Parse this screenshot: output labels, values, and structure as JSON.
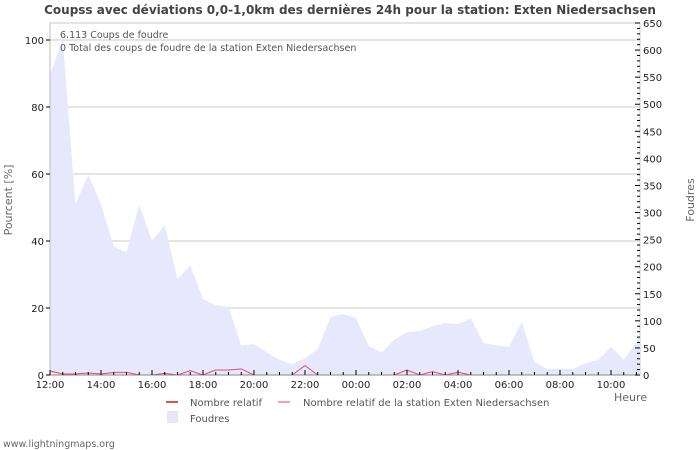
{
  "title": "Coupss avec déviations 0,0-1,0km des dernières 24h pour la station: Exten Niedersachsen",
  "annotations": {
    "line1": "6.113  Coups de foudre",
    "line2": "0 Total des coups de foudre de la station Exten Niedersachsen"
  },
  "axes": {
    "left_label": "Pourcent   [%]",
    "right_label": "Foudres",
    "x_label": "Heure",
    "left_ticks": [
      "0",
      "20",
      "40",
      "60",
      "80",
      "100"
    ],
    "right_ticks": [
      "0",
      "50",
      "100",
      "150",
      "200",
      "250",
      "300",
      "350",
      "400",
      "450",
      "500",
      "550",
      "600",
      "650"
    ],
    "x_ticks": [
      "12:00",
      "14:00",
      "16:00",
      "18:00",
      "20:00",
      "22:00",
      "00:00",
      "02:00",
      "04:00",
      "06:00",
      "08:00",
      "10:00"
    ]
  },
  "legend": {
    "items": [
      {
        "label": "Nombre relatif",
        "color": "#d9534f",
        "type": "line"
      },
      {
        "label": "Nombre relatif de la station Exten Niedersachsen",
        "color": "#f4a3a3",
        "type": "line"
      },
      {
        "label": "Foudres",
        "color": "#e6e6fa",
        "type": "area"
      }
    ]
  },
  "footer": "www.lightningmaps.org",
  "colors": {
    "area": "#e8e8fc",
    "relative_line": "#d94f6a",
    "grid": "#c8c8c8",
    "title": "#444444"
  },
  "chart_data": {
    "type": "area",
    "title": "Coupss avec déviations 0,0-1,0km des dernières 24h pour la station: Exten Niedersachsen",
    "xlabel": "Heure",
    "ylabel": "Pourcent [%]",
    "y2label": "Foudres",
    "ylim": [
      0,
      100
    ],
    "y2lim": [
      0,
      650
    ],
    "grid": true,
    "legend_position": "bottom",
    "x": [
      "12:00",
      "12:30",
      "13:00",
      "13:30",
      "14:00",
      "14:30",
      "15:00",
      "15:30",
      "16:00",
      "16:30",
      "17:00",
      "17:30",
      "18:00",
      "18:30",
      "19:00",
      "19:30",
      "20:00",
      "20:30",
      "21:00",
      "21:30",
      "22:00",
      "22:30",
      "23:00",
      "23:30",
      "00:00",
      "00:30",
      "01:00",
      "01:30",
      "02:00",
      "02:30",
      "03:00",
      "03:30",
      "04:00",
      "04:30",
      "05:00",
      "05:30",
      "06:00",
      "06:30",
      "07:00",
      "07:30",
      "08:00",
      "08:30",
      "09:00",
      "09:30",
      "10:00",
      "10:30",
      "11:00",
      "11:30"
    ],
    "series": [
      {
        "name": "Foudres",
        "axis": "right",
        "type": "area",
        "values": [
          555,
          620,
          315,
          370,
          315,
          237,
          227,
          315,
          248,
          277,
          177,
          203,
          140,
          129,
          126,
          54,
          57,
          42,
          28,
          20,
          31,
          48,
          107,
          113,
          105,
          54,
          41,
          65,
          79,
          81,
          90,
          96,
          94,
          105,
          59,
          55,
          52,
          98,
          24,
          11,
          11,
          11,
          22,
          28,
          52,
          28,
          61,
          83
        ]
      },
      {
        "name": "Nombre relatif",
        "axis": "left",
        "type": "line",
        "values": [
          1.2,
          0.3,
          0.3,
          0.6,
          0.3,
          0.8,
          0.8,
          0,
          0,
          0.5,
          0,
          1.3,
          0,
          1.5,
          1.5,
          1.8,
          0,
          0,
          0,
          0,
          2.8,
          0,
          0,
          0,
          0,
          0,
          0,
          0,
          1.5,
          0,
          1.0,
          0,
          0.8,
          0,
          0,
          0,
          0,
          0,
          0,
          0,
          0,
          0,
          0,
          0,
          0,
          0,
          0,
          0
        ]
      },
      {
        "name": "Nombre relatif de la station Exten Niedersachsen",
        "axis": "left",
        "type": "line",
        "values": [
          0,
          0,
          0,
          0,
          0,
          0,
          0,
          0,
          0,
          0,
          0,
          0,
          0,
          0,
          0,
          0,
          0,
          0,
          0,
          0,
          0,
          0,
          0,
          0,
          0,
          0,
          0,
          0,
          0,
          0,
          0,
          0,
          0,
          0,
          0,
          0,
          0,
          0,
          0,
          0,
          0,
          0,
          0,
          0,
          0,
          0,
          0,
          0
        ]
      }
    ]
  }
}
